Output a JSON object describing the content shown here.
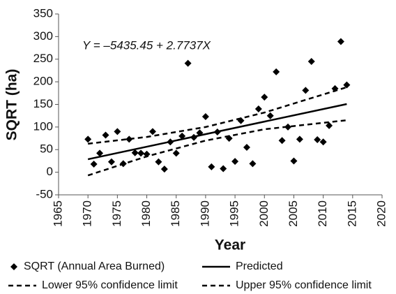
{
  "chart_data": {
    "type": "scatter",
    "x_label": "Year",
    "y_label": "SQRT (ha)",
    "annotation": "Y = –5435.45 + 2.7737X",
    "xlim": [
      1965,
      2020
    ],
    "xticks": [
      1965,
      1970,
      1975,
      1980,
      1985,
      1990,
      1995,
      2000,
      2005,
      2010,
      2015,
      2020
    ],
    "ylim": [
      -50,
      350
    ],
    "yticks": [
      -50,
      0,
      50,
      100,
      150,
      200,
      250,
      300,
      350
    ],
    "grid": false,
    "legend": "bottom",
    "series": [
      {
        "name": "SQRT (Annual Area Burned)",
        "type": "scatter",
        "color": "#000000",
        "x": [
          1970,
          1971,
          1972,
          1973,
          1974,
          1975,
          1976,
          1977,
          1978,
          1979,
          1980,
          1981,
          1982,
          1983,
          1984,
          1985,
          1986,
          1987,
          1988,
          1989,
          1990,
          1991,
          1992,
          1993,
          1994,
          1995,
          1996,
          1997,
          1998,
          1999,
          2000,
          2001,
          2002,
          2003,
          2004,
          2005,
          2006,
          2007,
          2008,
          2009,
          2010,
          2011,
          2012,
          2013,
          2014
        ],
        "values": [
          73,
          18,
          42,
          82,
          23,
          90,
          19,
          73,
          43,
          42,
          40,
          90,
          23,
          7,
          67,
          42,
          80,
          241,
          77,
          87,
          123,
          12,
          89,
          8,
          75,
          24,
          114,
          55,
          19,
          140,
          166,
          125,
          222,
          70,
          100,
          25,
          73,
          181,
          245,
          72,
          67,
          103,
          185,
          289,
          193
        ]
      },
      {
        "name": "Predicted",
        "type": "line",
        "dash": false,
        "color": "#000000",
        "x": [
          1970,
          2014
        ],
        "values": [
          28.7,
          150.8
        ]
      },
      {
        "name": "Lower 95% confidence limit",
        "type": "line",
        "dash": true,
        "color": "#000000",
        "x": [
          1970,
          1980,
          1990,
          2000,
          2014
        ],
        "values": [
          -7,
          35,
          70,
          95,
          115
        ]
      },
      {
        "name": "Upper 95% confidence limit",
        "type": "line",
        "dash": true,
        "color": "#000000",
        "x": [
          1970,
          1980,
          1990,
          2000,
          2014
        ],
        "values": [
          63,
          78,
          100,
          132,
          188
        ]
      }
    ]
  }
}
